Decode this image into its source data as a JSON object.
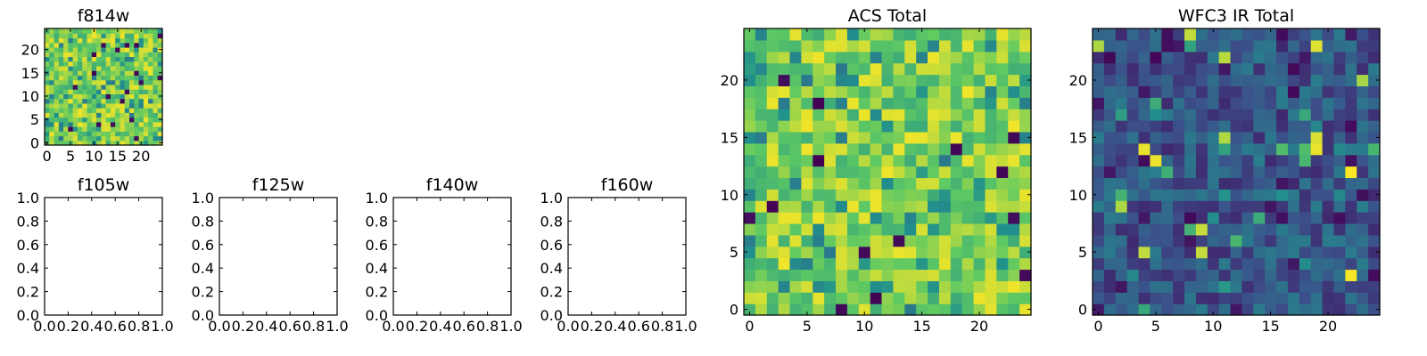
{
  "colormap": [
    "#440154",
    "#3b528b",
    "#21918c",
    "#5ec962",
    "#fde725"
  ],
  "chart_data": [
    {
      "type": "heatmap",
      "title": "f814w",
      "xticks": [
        0,
        5,
        10,
        15,
        20
      ],
      "yticks": [
        0,
        5,
        10,
        15,
        20
      ],
      "xlim": [
        -0.5,
        24.5
      ],
      "ylim": [
        -0.5,
        24.5
      ],
      "grid_size": 25,
      "seed": 814,
      "profile": "acs"
    },
    {
      "type": "heatmap",
      "title": "f105w",
      "xticks": [
        "0.0",
        "0.2",
        "0.4",
        "0.6",
        "0.8",
        "1.0"
      ],
      "yticks": [
        "0.0",
        "0.2",
        "0.4",
        "0.6",
        "0.8",
        "1.0"
      ],
      "xlim": [
        0,
        1
      ],
      "ylim": [
        0,
        1
      ],
      "empty": true
    },
    {
      "type": "heatmap",
      "title": "f125w",
      "xticks": [
        "0.0",
        "0.2",
        "0.4",
        "0.6",
        "0.8",
        "1.0"
      ],
      "yticks": [
        "0.0",
        "0.2",
        "0.4",
        "0.6",
        "0.8",
        "1.0"
      ],
      "xlim": [
        0,
        1
      ],
      "ylim": [
        0,
        1
      ],
      "empty": true
    },
    {
      "type": "heatmap",
      "title": "f140w",
      "xticks": [
        "0.0",
        "0.2",
        "0.4",
        "0.6",
        "0.8",
        "1.0"
      ],
      "yticks": [
        "0.0",
        "0.2",
        "0.4",
        "0.6",
        "0.8",
        "1.0"
      ],
      "xlim": [
        0,
        1
      ],
      "ylim": [
        0,
        1
      ],
      "empty": true
    },
    {
      "type": "heatmap",
      "title": "f160w",
      "xticks": [
        "0.0",
        "0.2",
        "0.4",
        "0.6",
        "0.8",
        "1.0"
      ],
      "yticks": [
        "0.0",
        "0.2",
        "0.4",
        "0.6",
        "0.8",
        "1.0"
      ],
      "xlim": [
        0,
        1
      ],
      "ylim": [
        0,
        1
      ],
      "empty": true
    },
    {
      "type": "heatmap",
      "title": "ACS Total",
      "xticks": [
        0,
        5,
        10,
        15,
        20
      ],
      "yticks": [
        0,
        5,
        10,
        15,
        20
      ],
      "xlim": [
        -0.5,
        24.5
      ],
      "ylim": [
        -0.5,
        24.5
      ],
      "grid_size": 25,
      "seed": 1001,
      "profile": "acs"
    },
    {
      "type": "heatmap",
      "title": "WFC3 IR Total",
      "xticks": [
        0,
        5,
        10,
        15,
        20
      ],
      "yticks": [
        0,
        5,
        10,
        15,
        20
      ],
      "xlim": [
        -0.5,
        24.5
      ],
      "ylim": [
        -0.5,
        24.5
      ],
      "grid_size": 25,
      "seed": 2002,
      "profile": "ir"
    }
  ]
}
